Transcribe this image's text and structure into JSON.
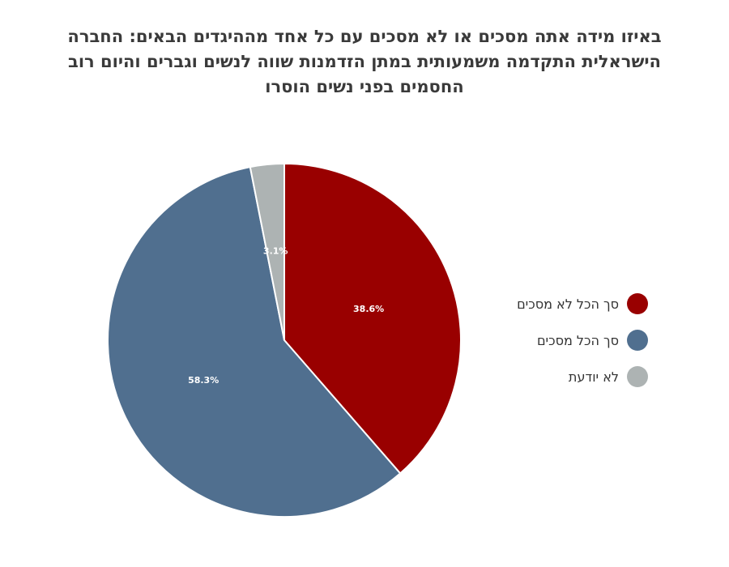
{
  "chart_data": {
    "type": "pie",
    "title": "באיזו מידה אתה מסכים או לא מסכים עם כל אחד מההיגדים הבאים: החברה הישראלית התקדמה משמעותית במתן הזדמנות שווה לנשים וגברים והיום רוב החסמים בפני נשים הוסרו",
    "slices": [
      {
        "label": "סך הכל לא מסכים",
        "value": 38.6,
        "value_label": "38.6%",
        "color": "#990000"
      },
      {
        "label": "סך הכל מסכים",
        "value": 58.3,
        "value_label": "58.3%",
        "color": "#506f8f"
      },
      {
        "label": "לא יודעת",
        "value": 3.1,
        "value_label": "3.1%",
        "color": "#adb3b3"
      }
    ],
    "legend_position": "right"
  }
}
